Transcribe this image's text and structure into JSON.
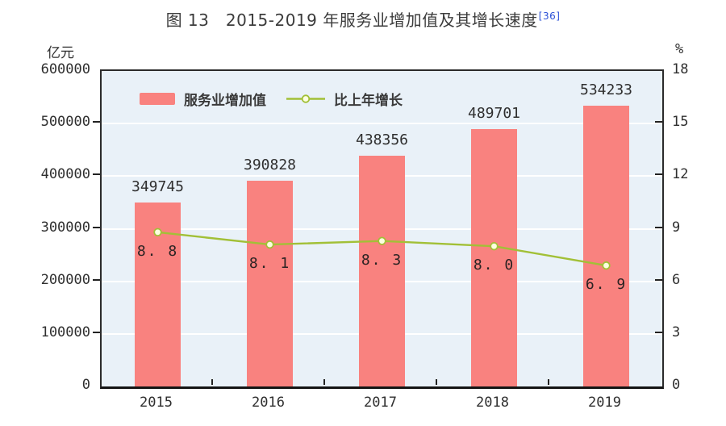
{
  "title": {
    "text": "图 13　2015-2019 年服务业增加值及其增长速度",
    "ref": "[36]",
    "ref_color": "#2b50d6"
  },
  "chart_data": {
    "type": "bar",
    "subtype": "bar+line combo, dual axis",
    "categories": [
      "2015",
      "2016",
      "2017",
      "2018",
      "2019"
    ],
    "series": [
      {
        "name": "服务业增加值",
        "type": "bar",
        "axis": "left",
        "unit": "亿元",
        "color": "#F9827F",
        "values": [
          349745,
          390828,
          438356,
          489701,
          534233
        ]
      },
      {
        "name": "比上年增长",
        "type": "line",
        "axis": "right",
        "unit": "%",
        "color": "#A2C037",
        "marker_fill": "#FDFFE0",
        "values": [
          8.8,
          8.1,
          8.3,
          8.0,
          6.9
        ]
      }
    ],
    "left_axis": {
      "unit": "亿元",
      "min": 0,
      "max": 600000,
      "step": 100000,
      "tick_labels": [
        "0",
        "100000",
        "200000",
        "300000",
        "400000",
        "500000",
        "600000"
      ]
    },
    "right_axis": {
      "unit": "%",
      "min": 0,
      "max": 18,
      "step": 3,
      "tick_labels": [
        "0",
        "3",
        "6",
        "9",
        "12",
        "15",
        "18"
      ]
    },
    "grid": "horizontal white gridlines",
    "plot_background": "#E9F1F8",
    "legend_position": "top-inside"
  }
}
